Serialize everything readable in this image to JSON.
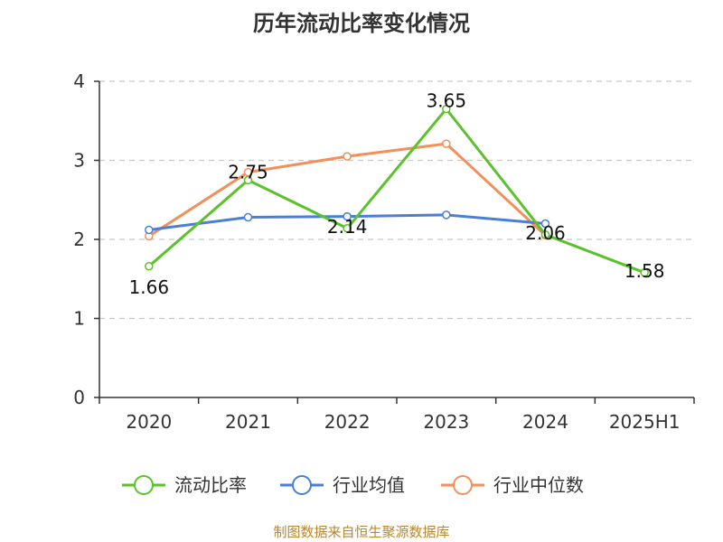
{
  "chart_data": {
    "type": "line",
    "title": "历年流动比率变化情况",
    "categories": [
      "2020",
      "2021",
      "2022",
      "2023",
      "2024",
      "2025H1"
    ],
    "ylim": [
      0,
      4
    ],
    "yticks": [
      "0",
      "1",
      "2",
      "3",
      "4"
    ],
    "grid": true,
    "legend_position": "bottom",
    "series": [
      {
        "name": "流动比率",
        "color": "#5bc22b",
        "values": [
          1.66,
          2.75,
          2.14,
          3.65,
          2.06,
          1.58
        ],
        "labels": [
          "1.66",
          "2.75",
          "2.14",
          "3.65",
          "2.06",
          "1.58"
        ]
      },
      {
        "name": "行业均值",
        "color": "#4a7fd8",
        "values": [
          2.12,
          2.28,
          2.29,
          2.31,
          2.2,
          null
        ]
      },
      {
        "name": "行业中位数",
        "color": "#f28f5a",
        "values": [
          2.04,
          2.85,
          3.05,
          3.21,
          2.05,
          null
        ]
      }
    ]
  },
  "source": "制图数据来自恒生聚源数据库"
}
